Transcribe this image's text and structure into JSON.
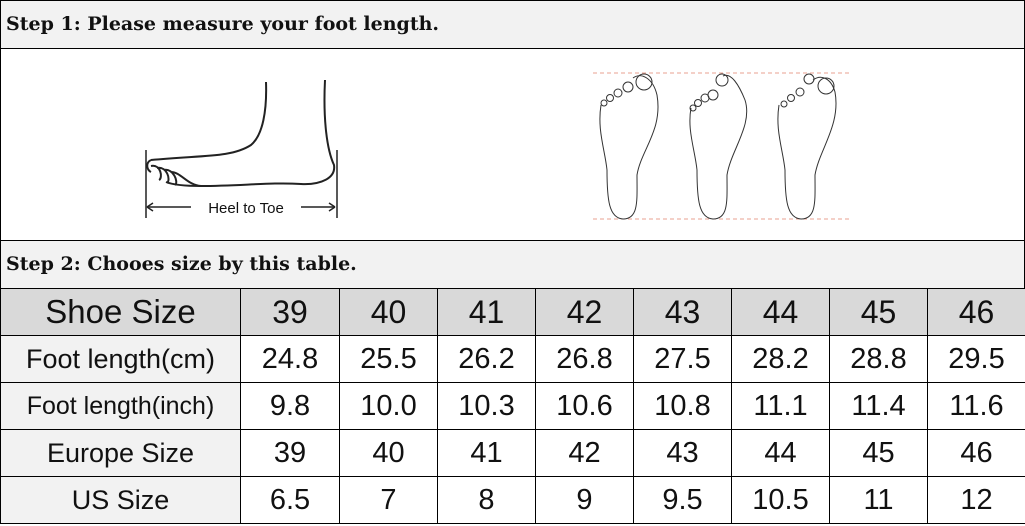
{
  "step1": {
    "title": "Step 1:  Please measure your foot length."
  },
  "illustration": {
    "side_label": "Heel to Toe",
    "guide_color": "#e8a090"
  },
  "step2": {
    "title": "Step 2:  Chooes size by this table."
  },
  "colors": {
    "header_bg": "#d9d9d9",
    "label_bg": "#f2f2f2",
    "step_bg": "#f2f2f2"
  },
  "table": {
    "rows": [
      {
        "label": "Shoe Size",
        "values": [
          "39",
          "40",
          "41",
          "42",
          "43",
          "44",
          "45",
          "46"
        ]
      },
      {
        "label": "Foot length(cm)",
        "values": [
          "24.8",
          "25.5",
          "26.2",
          "26.8",
          "27.5",
          "28.2",
          "28.8",
          "29.5"
        ]
      },
      {
        "label": "Foot length(inch)",
        "values": [
          "9.8",
          "10.0",
          "10.3",
          "10.6",
          "10.8",
          "11.1",
          "11.4",
          "11.6"
        ]
      },
      {
        "label": "Europe Size",
        "values": [
          "39",
          "40",
          "41",
          "42",
          "43",
          "44",
          "45",
          "46"
        ]
      },
      {
        "label": "US Size",
        "values": [
          "6.5",
          "7",
          "8",
          "9",
          "9.5",
          "10.5",
          "11",
          "12"
        ]
      }
    ]
  }
}
